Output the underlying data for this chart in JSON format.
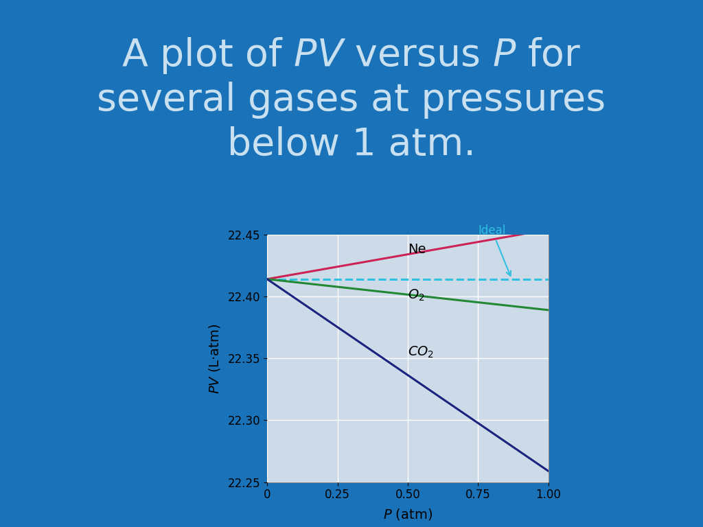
{
  "bg_color": "#1a72b8",
  "panel_color": "#ffffff",
  "plot_bg_color": "#cddae8",
  "title_color": "#c8e0f0",
  "title_fontsize": 40,
  "title_line1": "A plot of $\\mathit{PV}$ versus $\\mathit{P}$ for",
  "title_line2": "several gases at pressures",
  "title_line3": "below 1 atm.",
  "xlim": [
    0.0,
    1.0
  ],
  "ylim": [
    22.25,
    22.45
  ],
  "xticks": [
    0.0,
    0.25,
    0.5,
    0.75,
    1.0
  ],
  "yticks": [
    22.25,
    22.3,
    22.35,
    22.4,
    22.45
  ],
  "xtick_labels": [
    "0",
    "0.25",
    "0.50",
    "0.75",
    "1.00"
  ],
  "ytick_labels": [
    "22.25",
    "22.30",
    "22.35",
    "22.40",
    "22.45"
  ],
  "grid_color": "#ffffff",
  "ideal_pv": 22.414,
  "ideal_color": "#30c0e0",
  "ne_slope": 0.04,
  "ne_color": "#cc2255",
  "o2_slope": -0.025,
  "o2_color": "#228833",
  "co2_slope": -0.155,
  "co2_color": "#1a237e",
  "pv0": 22.414,
  "tick_fontsize": 12,
  "axis_label_fontsize": 14,
  "gas_label_fontsize": 14,
  "ideal_label_fontsize": 12,
  "linewidth": 2.2
}
